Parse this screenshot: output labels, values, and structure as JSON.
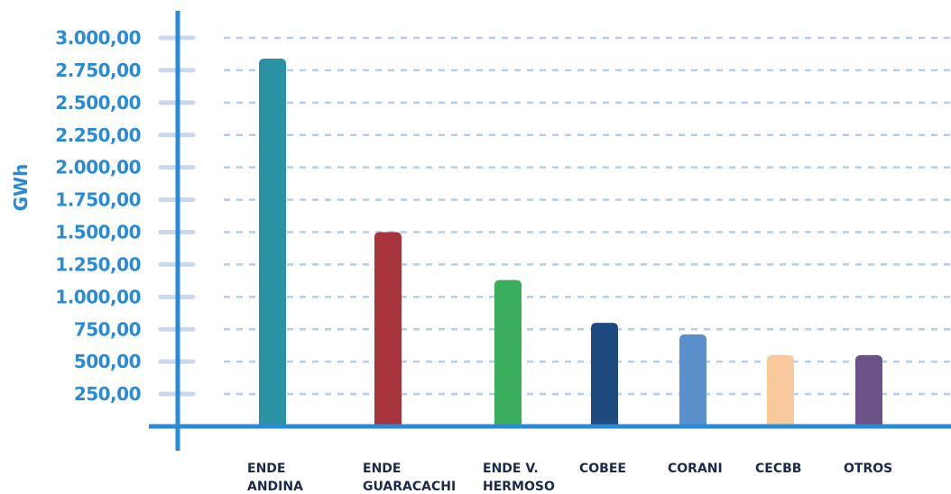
{
  "chart_data": {
    "type": "bar",
    "ylabel": "GWh",
    "ylim": [
      0,
      3000
    ],
    "yticks": [
      "250,00",
      "500,00",
      "750,00",
      "1.000,00",
      "1.250,00",
      "1.500,00",
      "1.750,00",
      "2.000,00",
      "2.250,00",
      "2.500,00",
      "2.750,00",
      "3.000,00"
    ],
    "categories": [
      [
        "ENDE",
        "ANDINA"
      ],
      [
        "ENDE",
        "GUARACACHI"
      ],
      [
        "ENDE V.",
        "HERMOSO"
      ],
      [
        "COBEE"
      ],
      [
        "CORANI"
      ],
      [
        "CECBB"
      ],
      [
        "OTROS"
      ]
    ],
    "values": [
      2840,
      1500,
      1130,
      800,
      710,
      550,
      550
    ],
    "colors": [
      "#2a93a3",
      "#a7343a",
      "#3aae5c",
      "#1f4a80",
      "#5a90cc",
      "#f7c99d",
      "#6b5388"
    ],
    "grid": true
  }
}
